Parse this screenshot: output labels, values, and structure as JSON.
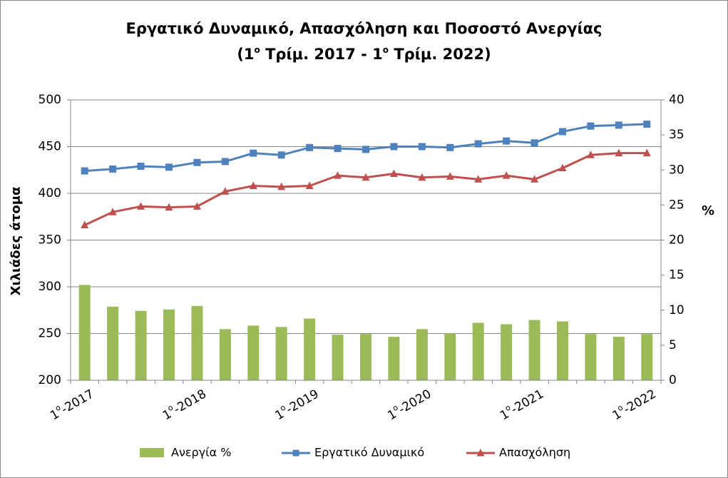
{
  "chart_data": {
    "type": "bar+line",
    "title_line1": "Εργατικό Δυναμικό, Απασχόληση και Ποσοστό Ανεργίας",
    "title_line2_parts": [
      "(1",
      "ο",
      " Τρίμ. 2017 - 1",
      "ο",
      " Τρίμ. 2022)"
    ],
    "ylabel_left": "Χιλιάδες άτομα",
    "ylabel_right": "%",
    "ylim_left": [
      200,
      500
    ],
    "ylim_right": [
      0,
      40
    ],
    "yticks_left": [
      "200",
      "250",
      "300",
      "350",
      "400",
      "450",
      "500"
    ],
    "yticks_right": [
      "0",
      "5",
      "10",
      "15",
      "20",
      "25",
      "30",
      "35",
      "40"
    ],
    "x_labels": [
      {
        "sup_pre": "1",
        "sup": "ο",
        "text": "-2017",
        "index": 0
      },
      {
        "sup_pre": "1",
        "sup": "ο",
        "text": "-2018",
        "index": 4
      },
      {
        "sup_pre": "1",
        "sup": "ο",
        "text": "-2019",
        "index": 8
      },
      {
        "sup_pre": "1",
        "sup": "ο",
        "text": "-2020",
        "index": 12
      },
      {
        "sup_pre": "1",
        "sup": "ο",
        "text": "-2021",
        "index": 16
      },
      {
        "sup_pre": "1",
        "sup": "ο",
        "text": "-2022",
        "index": 20
      }
    ],
    "periods": 21,
    "grid": "horizontal",
    "legend_position": "bottom",
    "series": [
      {
        "name": "Ανεργία %",
        "kind": "bar",
        "axis": "right",
        "color": "#9BBB59",
        "values": [
          13.6,
          10.5,
          9.9,
          10.1,
          10.6,
          7.3,
          7.8,
          7.6,
          8.8,
          6.5,
          6.6,
          6.2,
          7.3,
          6.7,
          8.2,
          8.0,
          8.6,
          8.4,
          6.6,
          6.2,
          6.6
        ]
      },
      {
        "name": "Εργατικό Δυναμικό",
        "kind": "line",
        "marker": "square",
        "axis": "left",
        "color": "#4F81BD",
        "values": [
          424,
          426,
          429,
          428,
          433,
          434,
          443,
          441,
          449,
          448,
          447,
          450,
          450,
          449,
          453,
          456,
          454,
          466,
          472,
          473,
          474
        ]
      },
      {
        "name": "Απασχόληση",
        "kind": "line",
        "marker": "triangle",
        "axis": "left",
        "color": "#C0504D",
        "values": [
          366,
          380,
          386,
          385,
          386,
          402,
          408,
          407,
          408,
          419,
          417,
          421,
          417,
          418,
          415,
          419,
          415,
          427,
          441,
          443,
          443
        ]
      }
    ]
  }
}
